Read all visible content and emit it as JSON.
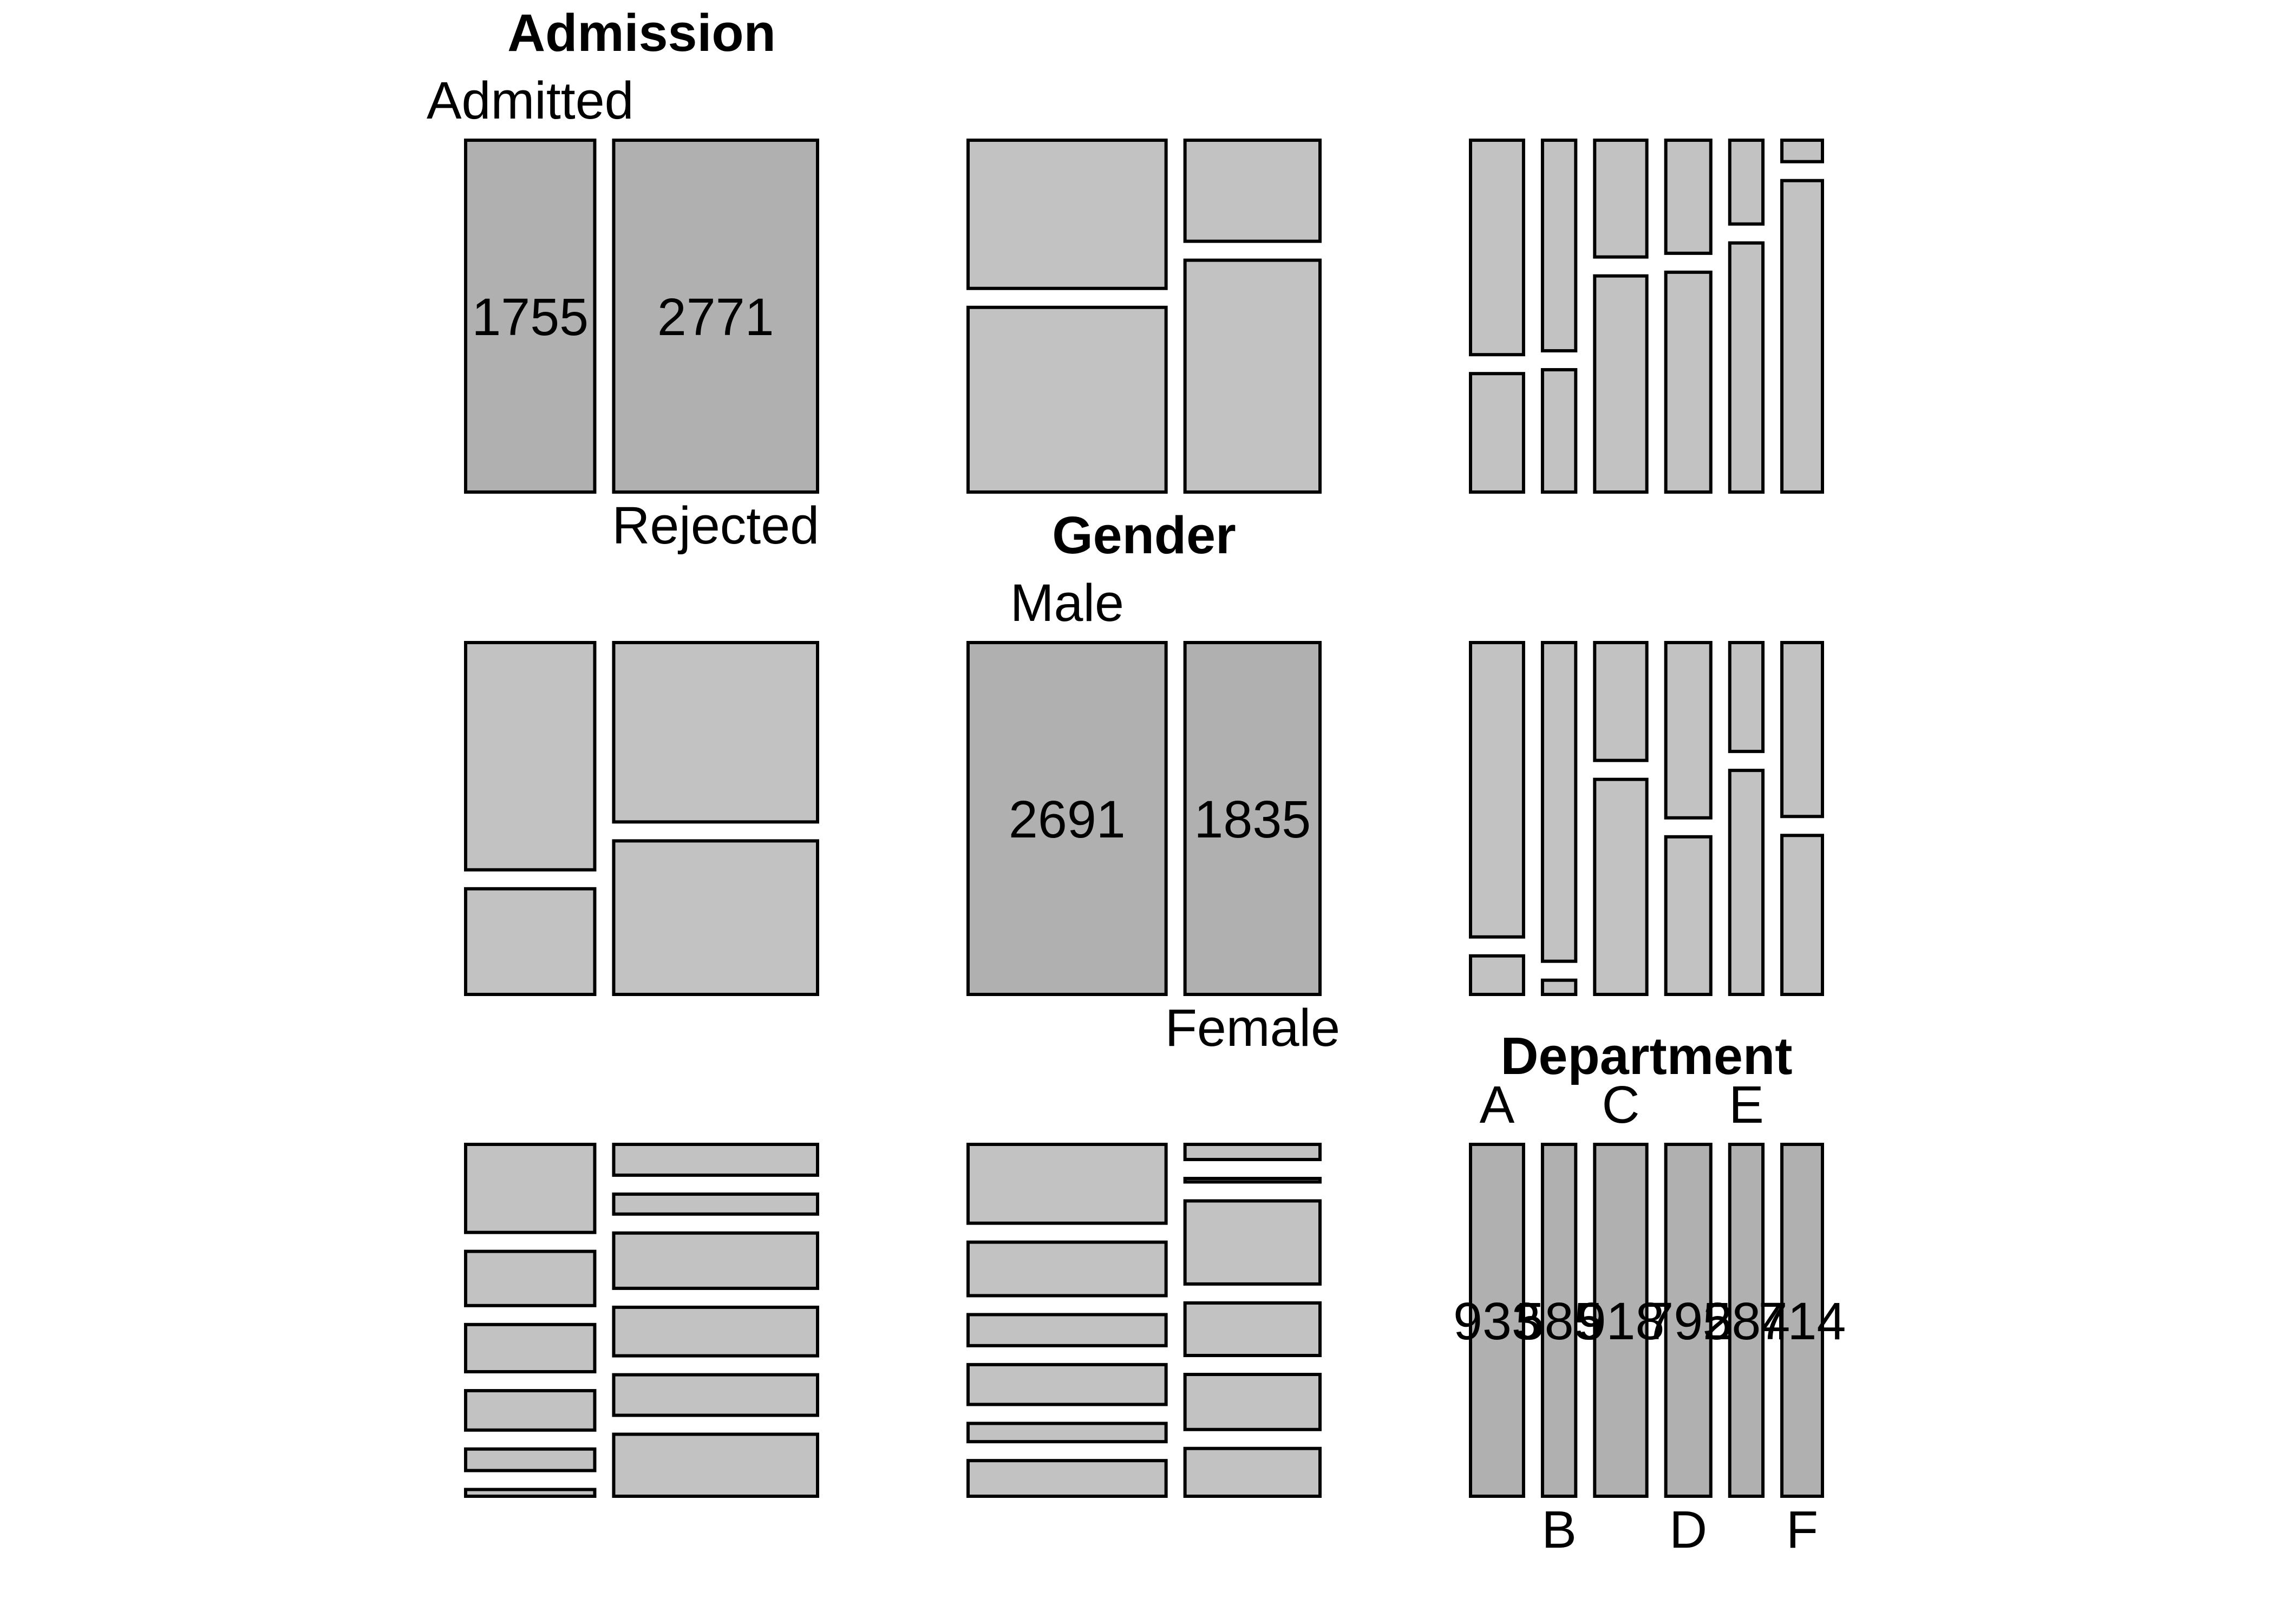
{
  "chart_data": {
    "type": "mosaic-pairs",
    "colors": {
      "diagonal_fill": "#b0b0b0",
      "off_diagonal_fill": "#c2c2c2",
      "stroke": "#000000"
    },
    "variables": [
      {
        "name": "Admission",
        "levels": [
          "Admitted",
          "Rejected"
        ],
        "counts": [
          1755,
          2771
        ]
      },
      {
        "name": "Gender",
        "levels": [
          "Male",
          "Female"
        ],
        "counts": [
          2691,
          1835
        ]
      },
      {
        "name": "Department",
        "levels": [
          "A",
          "B",
          "C",
          "D",
          "E",
          "F"
        ],
        "counts": [
          933,
          585,
          918,
          792,
          584,
          714
        ]
      }
    ],
    "display": {
      "Admission": {
        "level_labels": [
          "Admitted",
          "Rejected"
        ],
        "count_labels": [
          "1755",
          "2771"
        ]
      },
      "Gender": {
        "level_labels": [
          "Male",
          "Female"
        ],
        "count_labels": [
          "2691",
          "1835"
        ]
      },
      "Department": {
        "level_labels": [
          "A",
          "B",
          "C",
          "D",
          "E",
          "F"
        ],
        "count_labels": [
          "933",
          "585",
          "918",
          "792",
          "584",
          "714"
        ]
      }
    },
    "crosstabs": {
      "Admission_by_Gender": {
        "rows": [
          "Admitted",
          "Rejected"
        ],
        "cols": [
          "Male",
          "Female"
        ],
        "values": [
          [
            1198,
            557
          ],
          [
            1493,
            1278
          ]
        ]
      },
      "Admission_by_Department": {
        "rows": [
          "Admitted",
          "Rejected"
        ],
        "cols": [
          "A",
          "B",
          "C",
          "D",
          "E",
          "F"
        ],
        "values": [
          [
            601,
            370,
            322,
            269,
            147,
            46
          ],
          [
            332,
            215,
            596,
            523,
            437,
            668
          ]
        ]
      },
      "Gender_by_Department": {
        "rows": [
          "Male",
          "Female"
        ],
        "cols": [
          "A",
          "B",
          "C",
          "D",
          "E",
          "F"
        ],
        "values": [
          [
            825,
            560,
            325,
            417,
            191,
            373
          ],
          [
            108,
            25,
            593,
            375,
            393,
            341
          ]
        ]
      }
    }
  }
}
